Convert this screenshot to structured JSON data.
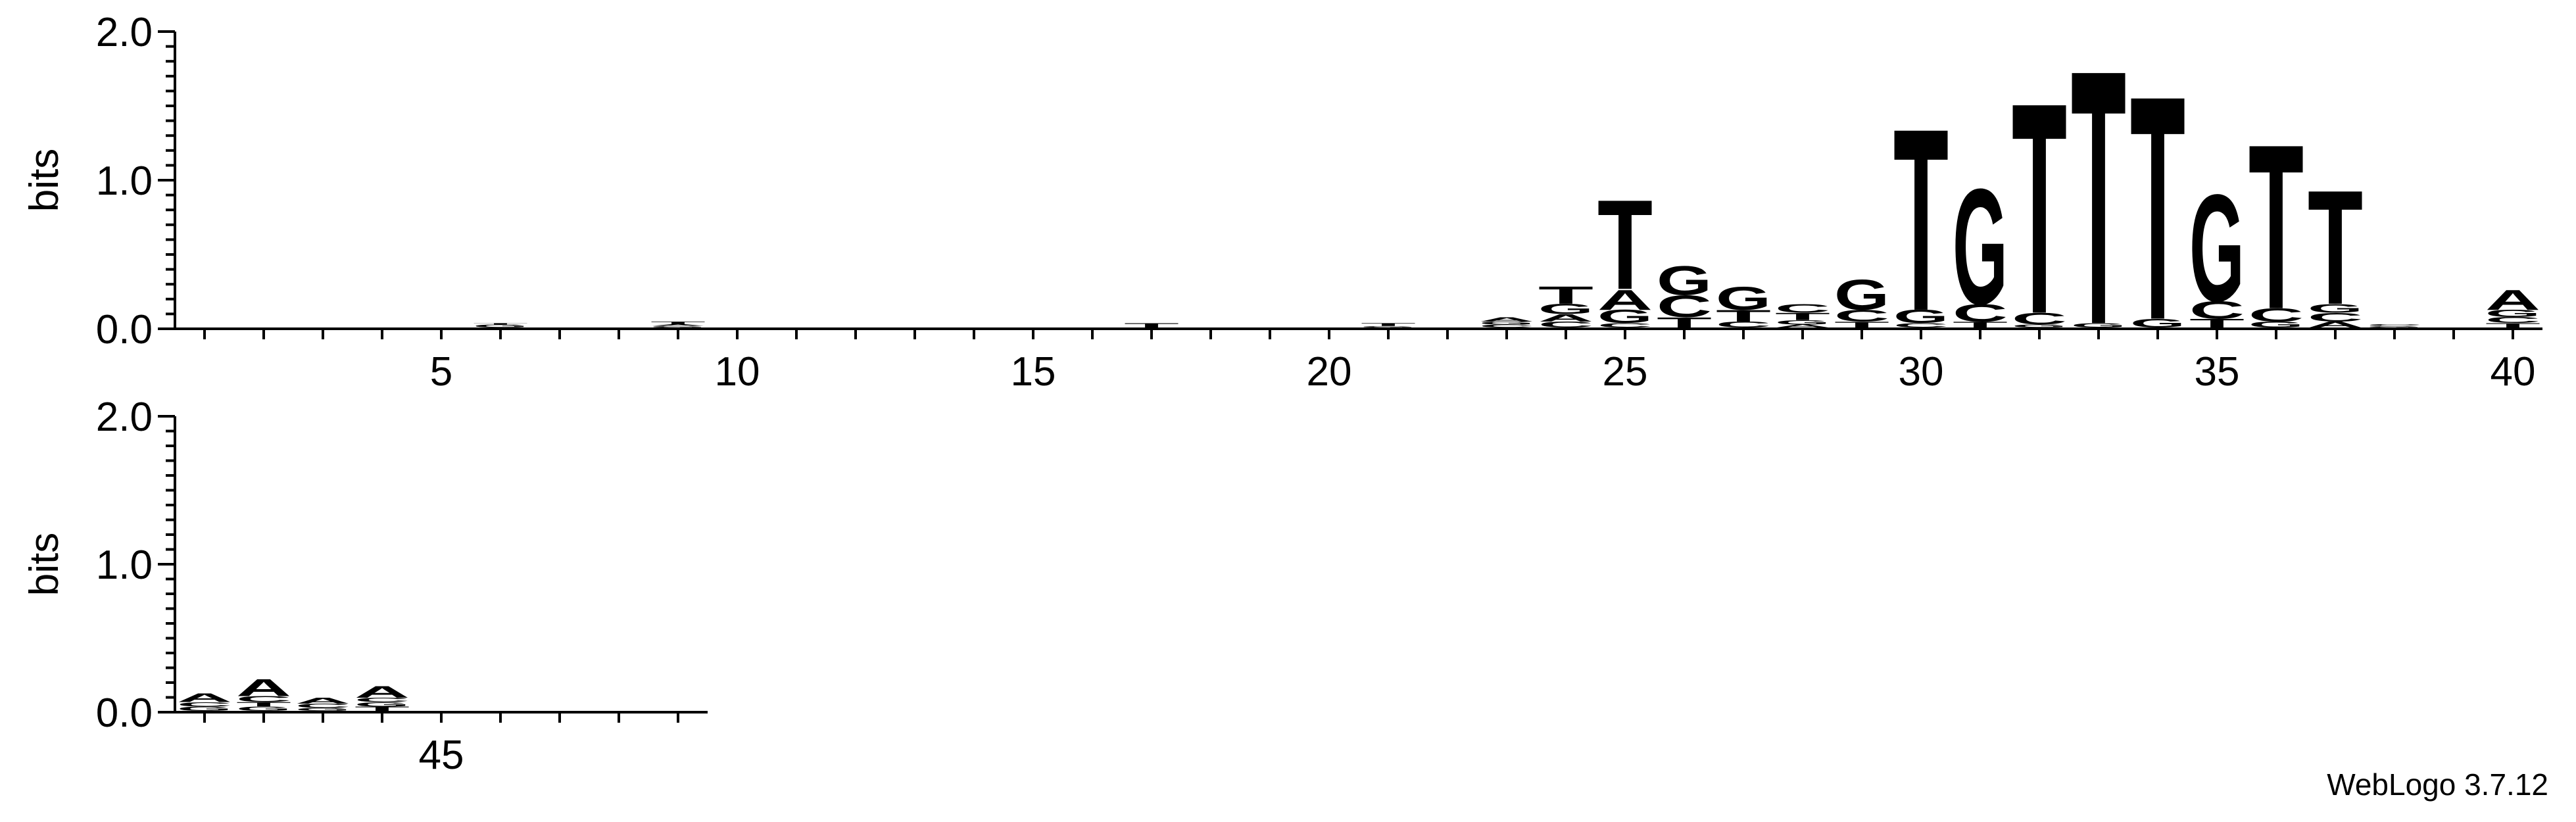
{
  "colors": {
    "A": "#008000",
    "C": "#0000cc",
    "G": "#ffa500",
    "T": "#ff0000"
  },
  "credit": "WebLogo 3.7.12",
  "chart_data": {
    "type": "sequence-logo",
    "ylabel": "bits",
    "ylim": [
      0,
      2.0
    ],
    "yticks": [
      "0.0",
      "1.0",
      "2.0"
    ],
    "rows": [
      {
        "positions": [
          1,
          40
        ],
        "xticks": [
          5,
          10,
          15,
          20,
          25,
          30,
          35,
          40
        ]
      },
      {
        "positions": [
          41,
          49
        ],
        "xticks": [
          45
        ]
      }
    ],
    "columns": [
      {
        "pos": 6,
        "stack": [
          [
            "G",
            0.02
          ],
          [
            "T",
            0.01
          ]
        ]
      },
      {
        "pos": 9,
        "stack": [
          [
            "G",
            0.01
          ],
          [
            "A",
            0.01
          ],
          [
            "T",
            0.02
          ]
        ]
      },
      {
        "pos": 17,
        "stack": [
          [
            "T",
            0.03
          ]
        ]
      },
      {
        "pos": 21,
        "stack": [
          [
            "G",
            0.01
          ],
          [
            "T",
            0.02
          ]
        ]
      },
      {
        "pos": 23,
        "stack": [
          [
            "C",
            0.02
          ],
          [
            "G",
            0.02
          ],
          [
            "A",
            0.03
          ]
        ]
      },
      {
        "pos": 24,
        "stack": [
          [
            "C",
            0.04
          ],
          [
            "A",
            0.05
          ],
          [
            "G",
            0.07
          ],
          [
            "T",
            0.12
          ]
        ]
      },
      {
        "pos": 25,
        "stack": [
          [
            "C",
            0.03
          ],
          [
            "G",
            0.09
          ],
          [
            "A",
            0.14
          ],
          [
            "T",
            0.62
          ]
        ]
      },
      {
        "pos": 26,
        "stack": [
          [
            "T",
            0.07
          ],
          [
            "C",
            0.15
          ],
          [
            "G",
            0.2
          ]
        ]
      },
      {
        "pos": 27,
        "stack": [
          [
            "C",
            0.04
          ],
          [
            "T",
            0.08
          ],
          [
            "G",
            0.16
          ]
        ]
      },
      {
        "pos": 28,
        "stack": [
          [
            "A",
            0.02
          ],
          [
            "G",
            0.03
          ],
          [
            "T",
            0.05
          ],
          [
            "C",
            0.06
          ]
        ]
      },
      {
        "pos": 29,
        "stack": [
          [
            "T",
            0.04
          ],
          [
            "C",
            0.08
          ],
          [
            "G",
            0.21
          ]
        ]
      },
      {
        "pos": 30,
        "stack": [
          [
            "C",
            0.03
          ],
          [
            "G",
            0.09
          ],
          [
            "T",
            1.26
          ]
        ]
      },
      {
        "pos": 31,
        "stack": [
          [
            "T",
            0.04
          ],
          [
            "C",
            0.12
          ],
          [
            "G",
            0.8
          ]
        ]
      },
      {
        "pos": 32,
        "stack": [
          [
            "G",
            0.02
          ],
          [
            "C",
            0.08
          ],
          [
            "T",
            1.46
          ]
        ]
      },
      {
        "pos": 33,
        "stack": [
          [
            "G",
            0.03
          ],
          [
            "T",
            1.76
          ]
        ]
      },
      {
        "pos": 34,
        "stack": [
          [
            "G",
            0.06
          ],
          [
            "T",
            1.55
          ]
        ]
      },
      {
        "pos": 35,
        "stack": [
          [
            "T",
            0.06
          ],
          [
            "C",
            0.12
          ],
          [
            "G",
            0.74
          ]
        ]
      },
      {
        "pos": 36,
        "stack": [
          [
            "G",
            0.04
          ],
          [
            "C",
            0.09
          ],
          [
            "T",
            1.14
          ]
        ]
      },
      {
        "pos": 37,
        "stack": [
          [
            "A",
            0.04
          ],
          [
            "C",
            0.06
          ],
          [
            "G",
            0.06
          ],
          [
            "T",
            0.79
          ]
        ]
      },
      {
        "pos": 38,
        "stack": [
          [
            "G",
            0.01
          ],
          [
            "C",
            0.01
          ]
        ]
      },
      {
        "pos": 40,
        "stack": [
          [
            "T",
            0.03
          ],
          [
            "C",
            0.04
          ],
          [
            "G",
            0.05
          ],
          [
            "A",
            0.14
          ]
        ]
      },
      {
        "pos": 41,
        "stack": [
          [
            "G",
            0.03
          ],
          [
            "C",
            0.03
          ],
          [
            "A",
            0.06
          ]
        ]
      },
      {
        "pos": 42,
        "stack": [
          [
            "G",
            0.03
          ],
          [
            "T",
            0.03
          ],
          [
            "C",
            0.04
          ],
          [
            "A",
            0.12
          ]
        ]
      },
      {
        "pos": 43,
        "stack": [
          [
            "G",
            0.02
          ],
          [
            "C",
            0.03
          ],
          [
            "A",
            0.04
          ]
        ]
      },
      {
        "pos": 44,
        "stack": [
          [
            "T",
            0.03
          ],
          [
            "G",
            0.03
          ],
          [
            "C",
            0.03
          ],
          [
            "A",
            0.08
          ]
        ]
      }
    ]
  }
}
